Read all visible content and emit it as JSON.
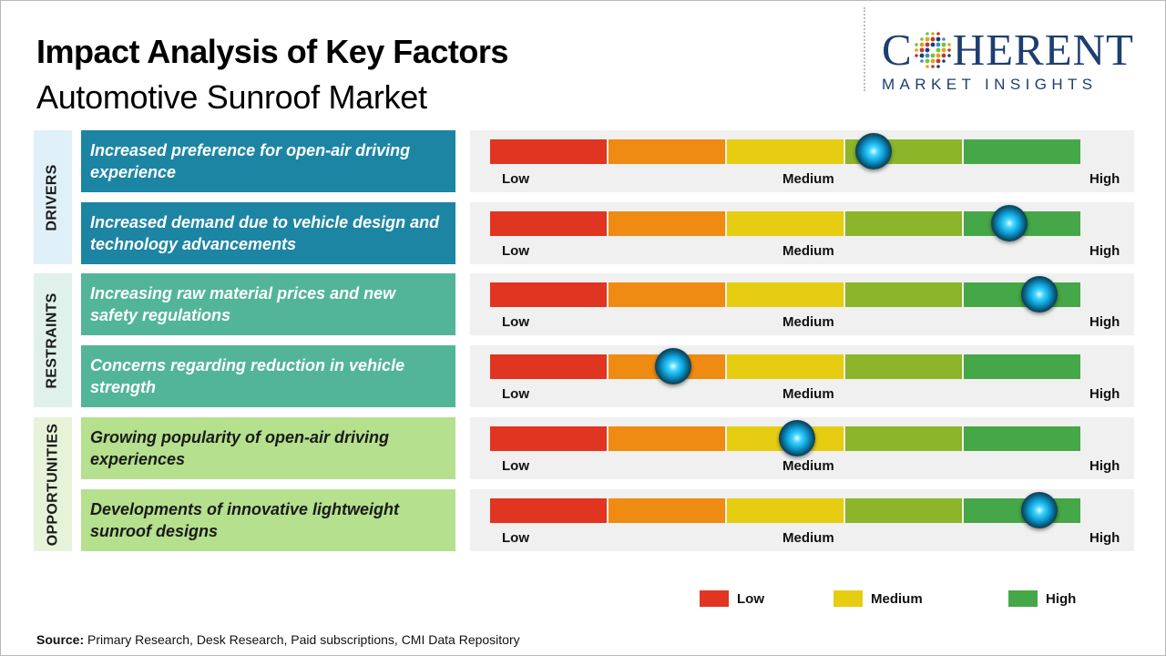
{
  "title": "Impact Analysis of Key Factors",
  "subtitle": "Automotive Sunroof Market",
  "logo": {
    "main_left": "C",
    "main_right": "HERENT",
    "sub": "MARKET INSIGHTS"
  },
  "colors": {
    "low": "#e03521",
    "medium_low": "#ef8b12",
    "medium": "#e7cd12",
    "medium_high": "#8db52a",
    "high": "#45a747",
    "drivers_bg": "#1d85a4",
    "drivers_label_bg": "#dff0f8",
    "restraints_bg": "#52b597",
    "restraints_label_bg": "#e0f1ec",
    "opportunities_bg": "#b5e08d",
    "opportunities_label_bg": "#e6f3d9"
  },
  "scale_labels": {
    "low": "Low",
    "medium": "Medium",
    "high": "High"
  },
  "categories": [
    {
      "name": "DRIVERS"
    },
    {
      "name": "RESTRAINTS"
    },
    {
      "name": "OPPORTUNITIES"
    }
  ],
  "factors": [
    {
      "text": "Increased preference for open-air driving experience"
    },
    {
      "text": "Increased demand due to vehicle design and technology advancements"
    },
    {
      "text": "Increasing raw material prices and new safety regulations"
    },
    {
      "text": "Concerns regarding reduction in vehicle strength"
    },
    {
      "text": "Growing popularity of open-air driving experiences"
    },
    {
      "text": "Developments of innovative lightweight sunroof designs"
    }
  ],
  "chart_data": {
    "type": "gauge",
    "scale": [
      "Low",
      "Medium",
      "High"
    ],
    "range": [
      0,
      1
    ],
    "items": [
      {
        "category": "DRIVERS",
        "factor": "Increased preference for open-air driving experience",
        "impact": 0.65
      },
      {
        "category": "DRIVERS",
        "factor": "Increased demand due to vehicle design and technology advancements",
        "impact": 0.88
      },
      {
        "category": "RESTRAINTS",
        "factor": "Increasing raw material prices and new safety regulations",
        "impact": 0.93
      },
      {
        "category": "RESTRAINTS",
        "factor": "Concerns regarding reduction in vehicle strength",
        "impact": 0.31
      },
      {
        "category": "OPPORTUNITIES",
        "factor": "Growing popularity of open-air driving experiences",
        "impact": 0.52
      },
      {
        "category": "OPPORTUNITIES",
        "factor": "Developments of innovative lightweight sunroof designs",
        "impact": 0.93
      }
    ]
  },
  "legend": [
    {
      "label": "Low",
      "color": "#e03521"
    },
    {
      "label": "Medium",
      "color": "#e7cd12"
    },
    {
      "label": "High",
      "color": "#45a747"
    }
  ],
  "source": {
    "label": "Source:",
    "text": "Primary Research, Desk Research, Paid subscriptions, CMI Data Repository"
  }
}
